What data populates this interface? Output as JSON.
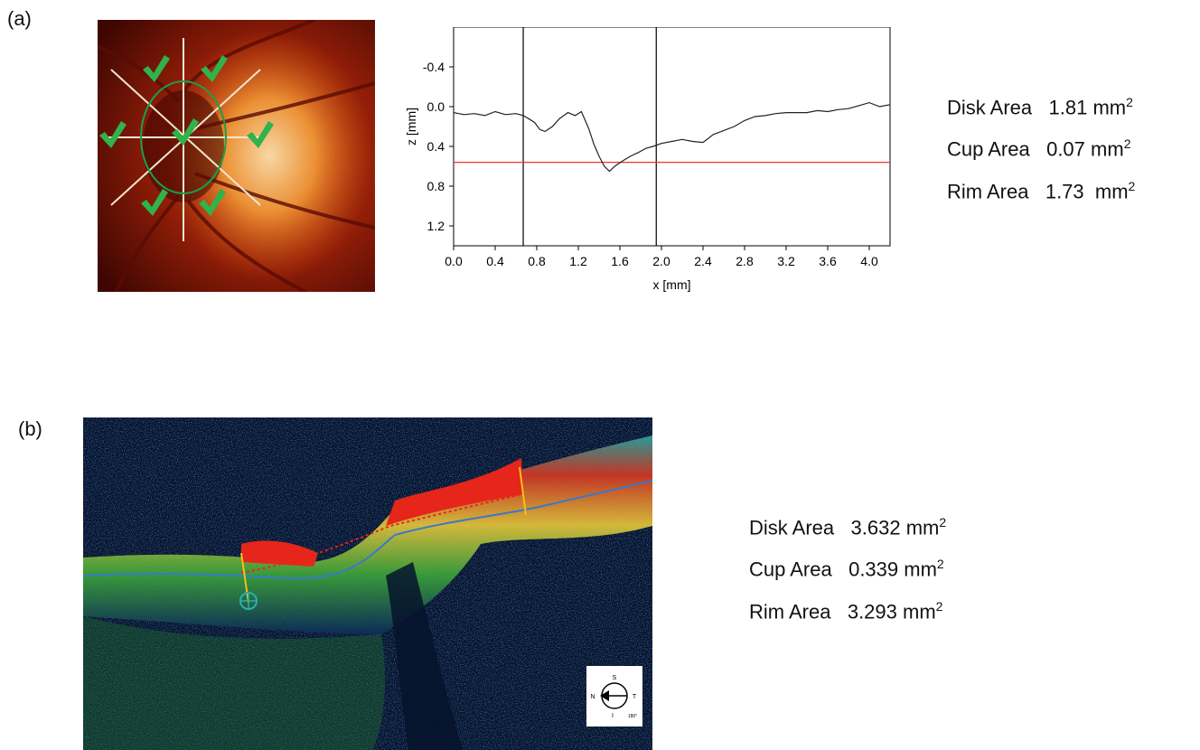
{
  "panel_a": {
    "label": "(a)",
    "stats": [
      {
        "label": "Disk Area",
        "value": "1.81",
        "unit": "mm",
        "exp": "2"
      },
      {
        "label": "Cup Area",
        "value": "0.07",
        "unit": "mm",
        "exp": "2"
      },
      {
        "label": "Rim Area",
        "value": "1.73",
        "unit": "mm",
        "exp": "2"
      }
    ]
  },
  "panel_b": {
    "label": "(b)",
    "stats": [
      {
        "label": "Disk Area",
        "value": "3.632",
        "unit": "mm",
        "exp": "2"
      },
      {
        "label": "Cup Area",
        "value": "0.339",
        "unit": "mm",
        "exp": "2"
      },
      {
        "label": "Rim Area",
        "value": "3.293",
        "unit": "mm",
        "exp": "2"
      }
    ],
    "compass": {
      "top": "S",
      "left": "N",
      "right": "T",
      "bottom": "I",
      "angle": "180°"
    }
  },
  "chart_data": {
    "type": "line",
    "xlabel": "x [mm]",
    "ylabel": "z [mm]",
    "xlim": [
      0.0,
      4.2
    ],
    "ylim": [
      1.4,
      -0.8
    ],
    "y_inverted": true,
    "xticks": [
      "0.0",
      "0.4",
      "0.8",
      "1.2",
      "1.6",
      "2.0",
      "2.4",
      "2.8",
      "3.2",
      "3.6",
      "4.0"
    ],
    "yticks": [
      "-0.4",
      "0.0",
      "0.4",
      "0.8",
      "1.2"
    ],
    "vlines": [
      0.67,
      1.95
    ],
    "hline": {
      "y": 0.56,
      "color": "#e8372f"
    },
    "series": [
      {
        "color": "#222222",
        "x": [
          0.0,
          0.1,
          0.2,
          0.3,
          0.4,
          0.5,
          0.6,
          0.67,
          0.72,
          0.78,
          0.83,
          0.88,
          0.95,
          1.02,
          1.1,
          1.17,
          1.23,
          1.3,
          1.35,
          1.4,
          1.45,
          1.5,
          1.55,
          1.62,
          1.7,
          1.78,
          1.85,
          1.92,
          2.0,
          2.1,
          2.2,
          2.3,
          2.4,
          2.5,
          2.6,
          2.7,
          2.8,
          2.9,
          3.0,
          3.1,
          3.2,
          3.3,
          3.4,
          3.5,
          3.6,
          3.7,
          3.8,
          3.9,
          4.0,
          4.1,
          4.2
        ],
        "y": [
          0.06,
          0.08,
          0.07,
          0.09,
          0.05,
          0.08,
          0.07,
          0.09,
          0.12,
          0.16,
          0.23,
          0.25,
          0.2,
          0.12,
          0.06,
          0.09,
          0.05,
          0.22,
          0.38,
          0.5,
          0.6,
          0.65,
          0.6,
          0.55,
          0.5,
          0.46,
          0.42,
          0.4,
          0.37,
          0.35,
          0.33,
          0.35,
          0.36,
          0.28,
          0.24,
          0.2,
          0.14,
          0.1,
          0.09,
          0.07,
          0.06,
          0.06,
          0.06,
          0.04,
          0.05,
          0.03,
          0.02,
          -0.01,
          -0.04,
          0.0,
          -0.02
        ]
      }
    ]
  }
}
